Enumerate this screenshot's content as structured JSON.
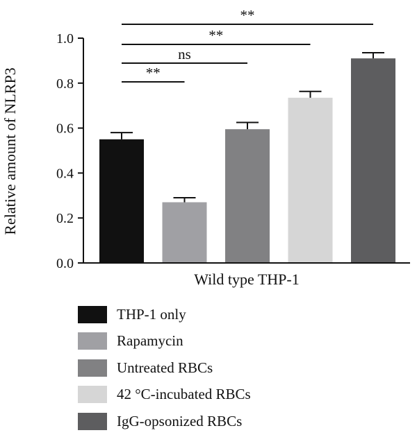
{
  "chart_data": {
    "type": "bar",
    "ylabel": "Relative amount of NLRP3",
    "xlabel": "Wild type THP-1",
    "ylim": [
      0,
      1.0
    ],
    "yticks": [
      "0.0",
      "0.2",
      "0.4",
      "0.6",
      "0.8",
      "1.0"
    ],
    "categories": [
      "THP-1 only",
      "Rapamycin",
      "Untreated RBCs",
      "42 °C-incubated RBCs",
      "IgG-opsonized RBCs"
    ],
    "values": [
      0.55,
      0.27,
      0.595,
      0.735,
      0.91
    ],
    "errors": [
      0.03,
      0.02,
      0.03,
      0.028,
      0.025
    ],
    "colors": [
      "#111111",
      "#a0a0a4",
      "#818183",
      "#d6d6d6",
      "#5d5d5f"
    ],
    "comparisons": [
      {
        "from": "THP-1 only",
        "to": "Rapamycin",
        "label": "**"
      },
      {
        "from": "THP-1 only",
        "to": "Untreated RBCs",
        "label": "ns"
      },
      {
        "from": "THP-1 only",
        "to": "42 °C-incubated RBCs",
        "label": "**"
      },
      {
        "from": "THP-1 only",
        "to": "IgG-opsonized RBCs",
        "label": "**"
      }
    ],
    "legend": "below"
  }
}
